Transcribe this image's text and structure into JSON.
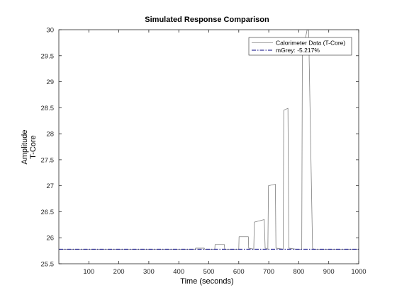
{
  "chart_data": {
    "type": "line",
    "title": "Simulated Response Comparison",
    "xlabel": "Time (seconds)",
    "ylabel": [
      "Amplitude",
      "T-Core"
    ],
    "xlim": [
      0,
      1000
    ],
    "ylim": [
      25.5,
      30
    ],
    "xticks": [
      100,
      200,
      300,
      400,
      500,
      600,
      700,
      800,
      900,
      1000
    ],
    "yticks": [
      25.5,
      26,
      26.5,
      27,
      27.5,
      28,
      28.5,
      29,
      29.5,
      30
    ],
    "grid": false,
    "legend_position": "top-right",
    "series": [
      {
        "name": "Calorimeter Data (T-Core)",
        "style": "solid",
        "color": "#7f7f7f",
        "x": [
          0,
          455,
          456,
          485,
          486,
          520,
          521,
          552,
          553,
          600,
          601,
          632,
          633,
          650,
          652,
          685,
          688,
          697,
          699,
          722,
          724,
          748,
          750,
          764,
          767,
          790,
          792,
          810,
          812,
          828,
          833,
          846,
          850,
          1000
        ],
        "y": [
          25.78,
          25.78,
          25.8,
          25.8,
          25.78,
          25.78,
          25.87,
          25.87,
          25.78,
          25.78,
          26.02,
          26.02,
          25.8,
          25.78,
          26.3,
          26.35,
          25.8,
          25.78,
          27.0,
          27.03,
          25.8,
          25.78,
          28.45,
          28.49,
          25.8,
          25.78,
          25.78,
          25.78,
          29.55,
          30.0,
          30.0,
          25.8,
          25.78,
          25.78
        ]
      },
      {
        "name": "mGrey: -5.217%",
        "style": "dashdot",
        "color": "#00007f",
        "x": [
          0,
          1000
        ],
        "y": [
          25.78,
          25.78
        ]
      }
    ]
  }
}
